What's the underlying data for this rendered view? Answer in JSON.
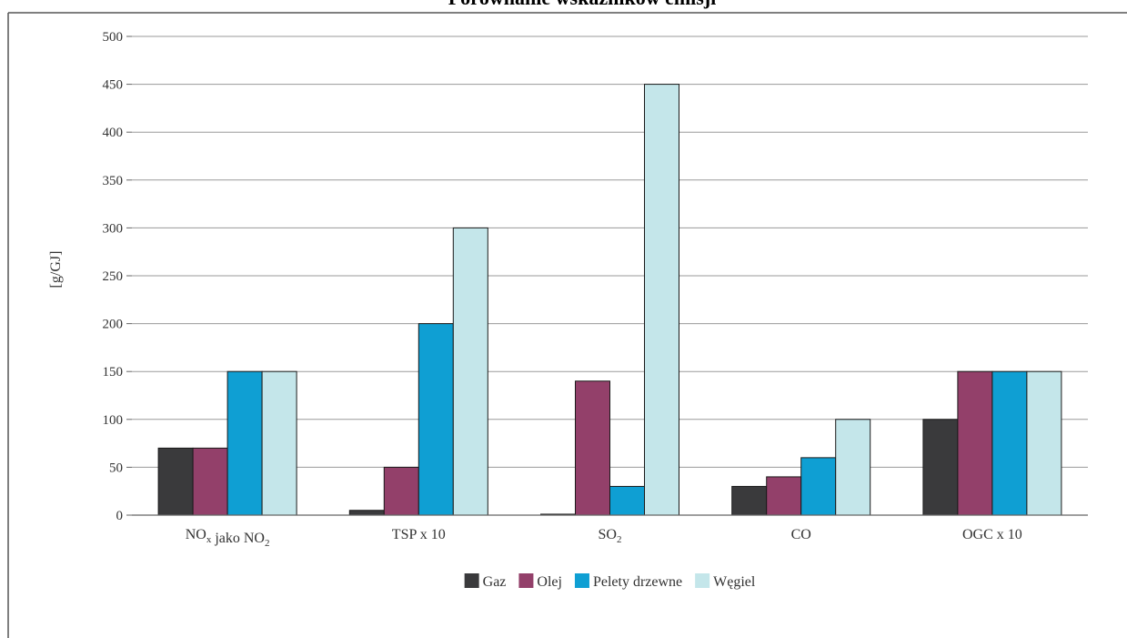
{
  "chart_data": {
    "type": "bar",
    "title": "Porównanie wskaźników emisji",
    "ylabel": "[g/GJ]",
    "xlabel": "",
    "ylim": [
      0,
      500
    ],
    "yticks": [
      0,
      50,
      100,
      150,
      200,
      250,
      300,
      350,
      400,
      450,
      500
    ],
    "grid": true,
    "legend_position": "bottom",
    "categories": [
      {
        "main": "NO",
        "sub": "x",
        "mid": " jako NO",
        "sub2": "2",
        "tail": ""
      },
      {
        "main": "TSP x 10",
        "sub": "",
        "mid": "",
        "sub2": "",
        "tail": ""
      },
      {
        "main": "SO",
        "sub": "2",
        "mid": "",
        "sub2": "",
        "tail": ""
      },
      {
        "main": "CO",
        "sub": "",
        "mid": "",
        "sub2": "",
        "tail": ""
      },
      {
        "main": "OGC x 10",
        "sub": "",
        "mid": "",
        "sub2": "",
        "tail": ""
      }
    ],
    "series": [
      {
        "name": "Gaz",
        "color": "#3a3a3c",
        "values": [
          70,
          5,
          1,
          30,
          100
        ]
      },
      {
        "name": "Olej",
        "color": "#93406a",
        "values": [
          70,
          50,
          140,
          40,
          150
        ]
      },
      {
        "name": "Pelety drzewne",
        "color": "#0f9fd3",
        "values": [
          150,
          200,
          30,
          60,
          150
        ]
      },
      {
        "name": "Węgiel",
        "color": "#c4e6ea",
        "values": [
          150,
          300,
          450,
          100,
          150
        ]
      }
    ]
  }
}
